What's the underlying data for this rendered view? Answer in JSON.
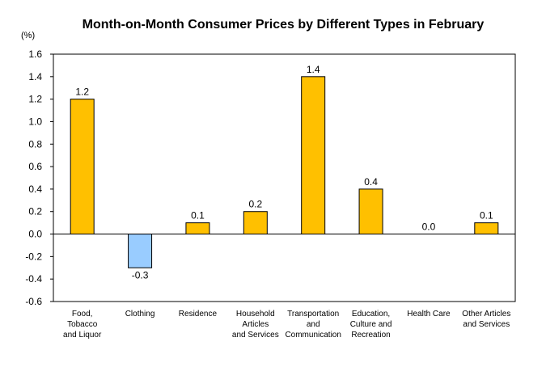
{
  "chart_data": {
    "type": "bar",
    "title": "Month-on-Month Consumer Prices by Different Types in February",
    "unit_label": "(%)",
    "xlabel": "",
    "ylabel": "",
    "ylim": [
      -0.6,
      1.6
    ],
    "yticks": [
      "1.6",
      "1.4",
      "1.2",
      "1.0",
      "0.8",
      "0.6",
      "0.4",
      "0.2",
      "0.0",
      "-0.2",
      "-0.4",
      "-0.6"
    ],
    "ytick_values": [
      1.6,
      1.4,
      1.2,
      1.0,
      0.8,
      0.6,
      0.4,
      0.2,
      0.0,
      -0.2,
      -0.4,
      -0.6
    ],
    "categories": [
      "Food, Tobacco and Liquor",
      "Clothing",
      "Residence",
      "Household Articles and Services",
      "Transportation and Communication",
      "Education, Culture and Recreation",
      "Health Care",
      "Other Articles and Services"
    ],
    "category_lines": [
      [
        "Food,",
        "Tobacco",
        "and Liquor"
      ],
      [
        "Clothing"
      ],
      [
        "Residence"
      ],
      [
        "Household",
        "Articles",
        "and Services"
      ],
      [
        "Transportation",
        "and",
        "Communication"
      ],
      [
        "Education,",
        "Culture and",
        "Recreation"
      ],
      [
        "Health Care"
      ],
      [
        "Other Articles",
        "and Services"
      ]
    ],
    "values": [
      1.2,
      -0.3,
      0.1,
      0.2,
      1.4,
      0.4,
      0.0,
      0.1
    ],
    "data_labels": [
      "1.2",
      "-0.3",
      "0.1",
      "0.2",
      "1.4",
      "0.4",
      "0.0",
      "0.1"
    ],
    "grid": false,
    "legend": "none",
    "colors": {
      "positive": "#FFC000",
      "negative": "#99CCFF",
      "bar_border": "#000000",
      "axis": "#000000"
    }
  }
}
